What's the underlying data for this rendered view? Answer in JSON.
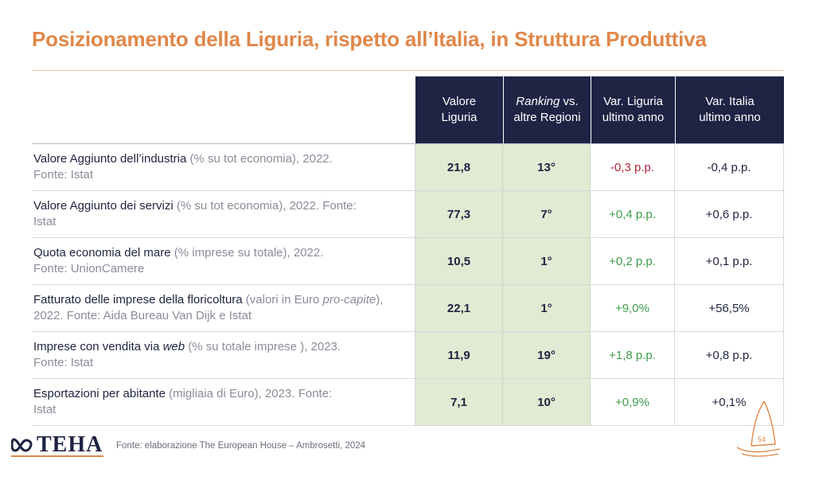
{
  "slide": {
    "title": "Posizionamento della Liguria, rispetto all’Italia, in Struttura Produttiva"
  },
  "table": {
    "headers": {
      "valore_l1": "Valore",
      "valore_l2": "Liguria",
      "ranking_l1_it": "Ranking",
      "ranking_l1_rest": " vs.",
      "ranking_l2": "altre Regioni",
      "var_liguria_l1": "Var. Liguria",
      "var_liguria_l2": "ultimo anno",
      "var_italia_l1": "Var. Italia",
      "var_italia_l2": "ultimo anno"
    },
    "rows": [
      {
        "label_main": "Valore Aggiunto dell’industria",
        "label_paren": " (% su tot economia)",
        "label_tail": ", 2022.",
        "label_source": "Fonte: Istat",
        "valore": "21,8",
        "ranking": "13°",
        "var_liguria": "-0,3 p.p.",
        "var_italia": "-0,4 p.p."
      },
      {
        "label_main": "Valore Aggiunto dei servizi",
        "label_paren": " (% su tot economia)",
        "label_tail": ", 2022. Fonte:",
        "label_source": "Istat",
        "valore": "77,3",
        "ranking": "7°",
        "var_liguria": "+0,4 p.p.",
        "var_italia": "+0,6 p.p."
      },
      {
        "label_main": "Quota economia del mare",
        "label_paren": " (% imprese su totale)",
        "label_tail": ", 2022.",
        "label_source": "Fonte: UnionCamere",
        "valore": "10,5",
        "ranking": "1°",
        "var_liguria": "+0,2 p.p.",
        "var_italia": "+0,1 p.p."
      },
      {
        "label_main": "Fatturato delle imprese della floricoltura",
        "label_paren": " (valori in Euro ",
        "label_paren_it": "pro-capite",
        "label_tail": "), 2022. Fonte: Aida Bureau Van Dijk e Istat",
        "valore": "22,1",
        "ranking": "1°",
        "var_liguria": "+9,0%",
        "var_italia": "+56,5%"
      },
      {
        "label_main": "Imprese con vendita via ",
        "label_main_it": "web",
        "label_paren": " (% su totale imprese )",
        "label_tail": ", 2023.",
        "label_source": "Fonte: Istat",
        "valore": "11,9",
        "ranking": "19°",
        "var_liguria": "+1,8 p.p.",
        "var_italia": "+0,8 p.p."
      },
      {
        "label_main": "Esportazioni per abitante",
        "label_paren": " (migliaia di Euro)",
        "label_tail": ", 2023. Fonte:",
        "label_source": "Istat",
        "valore": "7,1",
        "ranking": "10°",
        "var_liguria": "+0,9%",
        "var_italia": "+0,1%"
      }
    ]
  },
  "footer": {
    "logo_text": "TEHA",
    "source": "Fonte: elaborazione The European House – Ambrosetti, 2024",
    "page_number": "54"
  },
  "colors": {
    "title": "#e0874a",
    "header_bg": "#1f2344",
    "value_col_bg": "#e1ebd3",
    "negative": "#b0243a",
    "positive": "#3d9e4a"
  },
  "icons": [
    "teha-logo-mark-icon",
    "sail-icon"
  ]
}
